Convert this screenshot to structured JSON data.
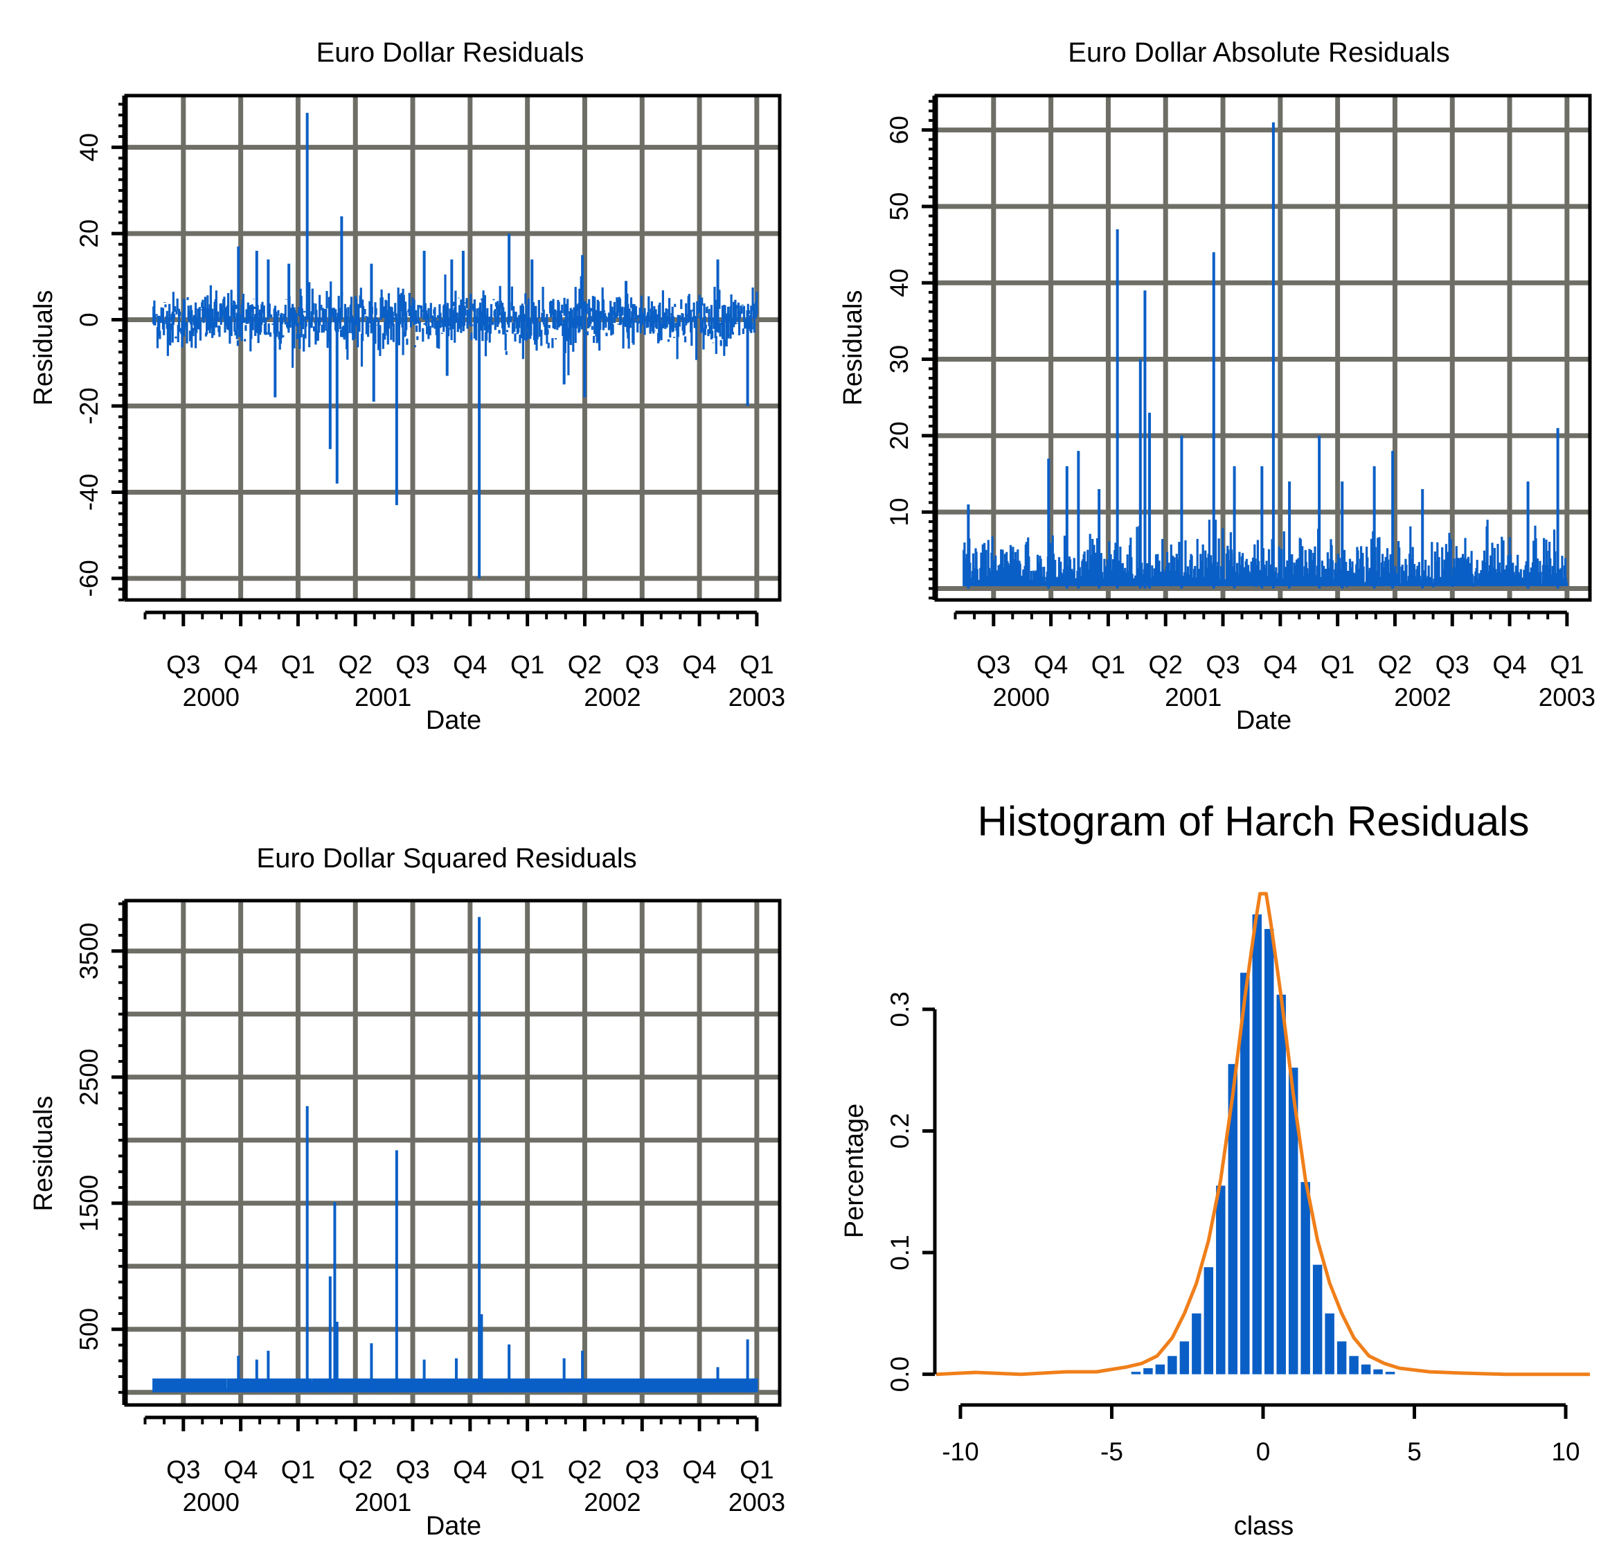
{
  "colors": {
    "series": "#0a5fc6",
    "density": "#f07f1a",
    "grid": "#6e6e66",
    "frame": "#000000"
  },
  "chart_data": [
    {
      "id": "residuals",
      "type": "line",
      "title": "Euro Dollar Residuals",
      "xlabel": "Date",
      "ylabel": "Residuals",
      "ylim": [
        -65,
        52
      ],
      "yticks": [
        -60,
        -40,
        -20,
        0,
        20,
        40
      ],
      "ytick_labels": [
        "-60",
        "-40",
        "-20",
        "0",
        "20",
        "40"
      ],
      "grid": true,
      "x_ticks": [
        {
          "label": "Q3",
          "year": "2000",
          "pos": 2000.5
        },
        {
          "label": "Q4",
          "year": "",
          "pos": 2000.75
        },
        {
          "label": "Q1",
          "year": "",
          "pos": 2001.0
        },
        {
          "label": "Q2",
          "year": "2001",
          "pos": 2001.25
        },
        {
          "label": "Q3",
          "year": "",
          "pos": 2001.5
        },
        {
          "label": "Q4",
          "year": "",
          "pos": 2001.75
        },
        {
          "label": "Q1",
          "year": "",
          "pos": 2002.0
        },
        {
          "label": "Q2",
          "year": "2002",
          "pos": 2002.25
        },
        {
          "label": "Q3",
          "year": "",
          "pos": 2002.5
        },
        {
          "label": "Q4",
          "year": "",
          "pos": 2002.75
        },
        {
          "label": "Q1",
          "year": "2003",
          "pos": 2003.0
        }
      ],
      "xlim": [
        2000.25,
        2003.1
      ],
      "series_start": 2000.37,
      "series_end": 2003.0,
      "noise_scale": 3.2,
      "spikes": [
        {
          "x": 2000.74,
          "y": 17
        },
        {
          "x": 2000.82,
          "y": 16
        },
        {
          "x": 2000.87,
          "y": 14
        },
        {
          "x": 2000.9,
          "y": -18
        },
        {
          "x": 2000.96,
          "y": 13
        },
        {
          "x": 2001.04,
          "y": 48
        },
        {
          "x": 2001.14,
          "y": -30
        },
        {
          "x": 2001.17,
          "y": -38
        },
        {
          "x": 2001.19,
          "y": 24
        },
        {
          "x": 2001.32,
          "y": 13
        },
        {
          "x": 2001.33,
          "y": -19
        },
        {
          "x": 2001.43,
          "y": -43
        },
        {
          "x": 2001.55,
          "y": 16
        },
        {
          "x": 2001.67,
          "y": 14
        },
        {
          "x": 2001.72,
          "y": 16
        },
        {
          "x": 2001.65,
          "y": -13
        },
        {
          "x": 2001.79,
          "y": -60
        },
        {
          "x": 2001.92,
          "y": 20
        },
        {
          "x": 2002.02,
          "y": 14
        },
        {
          "x": 2002.16,
          "y": -15
        },
        {
          "x": 2002.24,
          "y": 15
        },
        {
          "x": 2002.25,
          "y": -18
        },
        {
          "x": 2002.43,
          "y": 9
        },
        {
          "x": 2002.83,
          "y": 14
        },
        {
          "x": 2002.96,
          "y": -20
        }
      ]
    },
    {
      "id": "abs_residuals",
      "type": "line",
      "title": "Euro Dollar Absolute Residuals",
      "xlabel": "Date",
      "ylabel": "Residuals",
      "ylim": [
        -1.5,
        64.5
      ],
      "yticks": [
        10,
        20,
        30,
        40,
        50,
        60
      ],
      "ytick_labels": [
        "10",
        "20",
        "30",
        "40",
        "50",
        "60"
      ],
      "grid_y": [
        0,
        10,
        20,
        30,
        40,
        50,
        60
      ],
      "grid": true,
      "x_ticks": [
        {
          "label": "Q3",
          "year": "2000",
          "pos": 2000.5
        },
        {
          "label": "Q4",
          "year": "",
          "pos": 2000.75
        },
        {
          "label": "Q1",
          "year": "",
          "pos": 2001.0
        },
        {
          "label": "Q2",
          "year": "2001",
          "pos": 2001.25
        },
        {
          "label": "Q3",
          "year": "",
          "pos": 2001.5
        },
        {
          "label": "Q4",
          "year": "",
          "pos": 2001.75
        },
        {
          "label": "Q1",
          "year": "",
          "pos": 2002.0
        },
        {
          "label": "Q2",
          "year": "2002",
          "pos": 2002.25
        },
        {
          "label": "Q3",
          "year": "",
          "pos": 2002.5
        },
        {
          "label": "Q4",
          "year": "",
          "pos": 2002.75
        },
        {
          "label": "Q1",
          "year": "2003",
          "pos": 2003.0
        }
      ],
      "xlim": [
        2000.25,
        2003.1
      ],
      "series_start": 2000.37,
      "series_end": 2003.0,
      "noise_scale": 2.6,
      "spikes": [
        {
          "x": 2000.39,
          "y": 11
        },
        {
          "x": 2000.74,
          "y": 17
        },
        {
          "x": 2000.82,
          "y": 16
        },
        {
          "x": 2000.87,
          "y": 18
        },
        {
          "x": 2000.96,
          "y": 13
        },
        {
          "x": 2001.04,
          "y": 47
        },
        {
          "x": 2001.14,
          "y": 30
        },
        {
          "x": 2001.16,
          "y": 39
        },
        {
          "x": 2001.18,
          "y": 23
        },
        {
          "x": 2001.32,
          "y": 20
        },
        {
          "x": 2001.46,
          "y": 44
        },
        {
          "x": 2001.55,
          "y": 16
        },
        {
          "x": 2001.67,
          "y": 16
        },
        {
          "x": 2001.72,
          "y": 61
        },
        {
          "x": 2001.79,
          "y": 14
        },
        {
          "x": 2001.92,
          "y": 20
        },
        {
          "x": 2002.02,
          "y": 14
        },
        {
          "x": 2002.16,
          "y": 16
        },
        {
          "x": 2002.24,
          "y": 18
        },
        {
          "x": 2002.37,
          "y": 13
        },
        {
          "x": 2002.83,
          "y": 14
        },
        {
          "x": 2002.96,
          "y": 21
        }
      ]
    },
    {
      "id": "sq_residuals",
      "type": "line",
      "title": "Euro Dollar Squared Residuals",
      "xlabel": "Date",
      "ylabel": "Residuals",
      "ylim": [
        -100,
        3900
      ],
      "yticks": [
        500,
        1500,
        2500,
        3500
      ],
      "ytick_labels": [
        "500",
        "1500",
        "2500",
        "3500"
      ],
      "grid_y": [
        0,
        500,
        1000,
        1500,
        2000,
        2500,
        3000,
        3500
      ],
      "grid": true,
      "x_ticks": [
        {
          "label": "Q3",
          "year": "2000",
          "pos": 2000.5
        },
        {
          "label": "Q4",
          "year": "",
          "pos": 2000.75
        },
        {
          "label": "Q1",
          "year": "",
          "pos": 2001.0
        },
        {
          "label": "Q2",
          "year": "2001",
          "pos": 2001.25
        },
        {
          "label": "Q3",
          "year": "",
          "pos": 2001.5
        },
        {
          "label": "Q4",
          "year": "",
          "pos": 2001.75
        },
        {
          "label": "Q1",
          "year": "",
          "pos": 2002.0
        },
        {
          "label": "Q2",
          "year": "2002",
          "pos": 2002.25
        },
        {
          "label": "Q3",
          "year": "",
          "pos": 2002.5
        },
        {
          "label": "Q4",
          "year": "",
          "pos": 2002.75
        },
        {
          "label": "Q1",
          "year": "2003",
          "pos": 2003.0
        }
      ],
      "xlim": [
        2000.25,
        2003.1
      ],
      "series_start": 2000.37,
      "series_end": 2003.0,
      "noise_scale": 30,
      "spikes": [
        {
          "x": 2000.74,
          "y": 290
        },
        {
          "x": 2000.82,
          "y": 260
        },
        {
          "x": 2000.87,
          "y": 330
        },
        {
          "x": 2001.04,
          "y": 2270
        },
        {
          "x": 2001.14,
          "y": 920
        },
        {
          "x": 2001.16,
          "y": 1510
        },
        {
          "x": 2001.17,
          "y": 560
        },
        {
          "x": 2001.32,
          "y": 390
        },
        {
          "x": 2001.43,
          "y": 1920
        },
        {
          "x": 2001.55,
          "y": 260
        },
        {
          "x": 2001.69,
          "y": 270
        },
        {
          "x": 2001.79,
          "y": 3770
        },
        {
          "x": 2001.8,
          "y": 620
        },
        {
          "x": 2001.92,
          "y": 380
        },
        {
          "x": 2002.16,
          "y": 270
        },
        {
          "x": 2002.24,
          "y": 330
        },
        {
          "x": 2002.83,
          "y": 200
        },
        {
          "x": 2002.96,
          "y": 420
        }
      ]
    },
    {
      "id": "histogram",
      "type": "bar",
      "title": "Histogram of Harch Residuals",
      "xlabel": "class",
      "ylabel": "Percentage",
      "xlim": [
        -10.8,
        10.8
      ],
      "ylim": [
        -0.015,
        0.395
      ],
      "xticks": [
        -10,
        -5,
        0,
        5,
        10
      ],
      "xtick_labels": [
        "-10",
        "-5",
        "0",
        "5",
        "10"
      ],
      "yticks": [
        0.0,
        0.1,
        0.2,
        0.3
      ],
      "ytick_labels": [
        "0.0",
        "0.1",
        "0.2",
        "0.3"
      ],
      "bin_width": 0.4,
      "bins": [
        {
          "x": -4.2,
          "value": 0.002
        },
        {
          "x": -3.8,
          "value": 0.005
        },
        {
          "x": -3.4,
          "value": 0.008
        },
        {
          "x": -3.0,
          "value": 0.015
        },
        {
          "x": -2.6,
          "value": 0.027
        },
        {
          "x": -2.2,
          "value": 0.05
        },
        {
          "x": -1.8,
          "value": 0.088
        },
        {
          "x": -1.4,
          "value": 0.155
        },
        {
          "x": -1.0,
          "value": 0.255
        },
        {
          "x": -0.6,
          "value": 0.33
        },
        {
          "x": -0.2,
          "value": 0.378
        },
        {
          "x": 0.2,
          "value": 0.366
        },
        {
          "x": 0.6,
          "value": 0.312
        },
        {
          "x": 1.0,
          "value": 0.252
        },
        {
          "x": 1.4,
          "value": 0.158
        },
        {
          "x": 1.8,
          "value": 0.09
        },
        {
          "x": 2.2,
          "value": 0.05
        },
        {
          "x": 2.6,
          "value": 0.027
        },
        {
          "x": 3.0,
          "value": 0.015
        },
        {
          "x": 3.4,
          "value": 0.008
        },
        {
          "x": 3.8,
          "value": 0.004
        },
        {
          "x": 4.2,
          "value": 0.002
        }
      ],
      "density_curve": [
        [
          -10.8,
          0.0
        ],
        [
          -9.5,
          0.0015
        ],
        [
          -8,
          0.0
        ],
        [
          -6.5,
          0.002
        ],
        [
          -5.5,
          0.002
        ],
        [
          -4.5,
          0.006
        ],
        [
          -4.0,
          0.009
        ],
        [
          -3.5,
          0.015
        ],
        [
          -3.0,
          0.03
        ],
        [
          -2.6,
          0.05
        ],
        [
          -2.2,
          0.075
        ],
        [
          -1.8,
          0.11
        ],
        [
          -1.4,
          0.16
        ],
        [
          -1.0,
          0.23
        ],
        [
          -0.6,
          0.31
        ],
        [
          -0.25,
          0.372
        ],
        [
          -0.1,
          0.395
        ],
        [
          0.1,
          0.395
        ],
        [
          0.25,
          0.372
        ],
        [
          0.6,
          0.31
        ],
        [
          1.0,
          0.23
        ],
        [
          1.4,
          0.16
        ],
        [
          1.8,
          0.11
        ],
        [
          2.2,
          0.075
        ],
        [
          2.6,
          0.05
        ],
        [
          3.0,
          0.03
        ],
        [
          3.5,
          0.015
        ],
        [
          4.0,
          0.009
        ],
        [
          4.5,
          0.005
        ],
        [
          5.5,
          0.002
        ],
        [
          6.5,
          0.001
        ],
        [
          8,
          0.0
        ],
        [
          10.8,
          0.0
        ]
      ]
    }
  ]
}
